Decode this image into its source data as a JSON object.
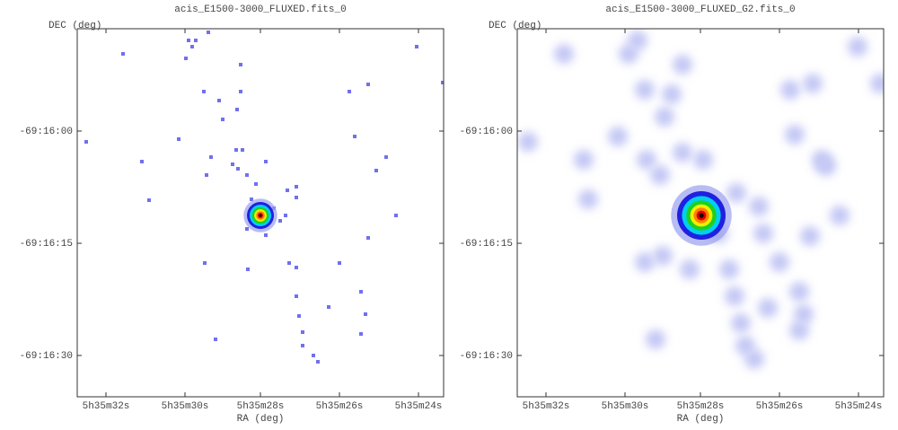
{
  "panels": [
    {
      "title": "acis_E1500-3000_FLUXED.fits_0",
      "y_label": "DEC (deg)",
      "x_label": "RA (deg)",
      "y_ticks": [
        "-69:16:00",
        "-69:16:15",
        "-69:16:30"
      ],
      "x_ticks": [
        "5h35m32s",
        "5h35m30s",
        "5h35m28s",
        "5h35m26s",
        "5h35m24s"
      ]
    },
    {
      "title": "acis_E1500-3000_FLUXED_G2.fits_0",
      "y_label": "DEC (deg)",
      "x_label": "RA (deg)",
      "y_ticks": [
        "-69:16:00",
        "-69:16:15",
        "-69:16:30"
      ],
      "x_ticks": [
        "5h35m32s",
        "5h35m30s",
        "5h35m28s",
        "5h35m26s",
        "5h35m24s"
      ]
    }
  ]
}
